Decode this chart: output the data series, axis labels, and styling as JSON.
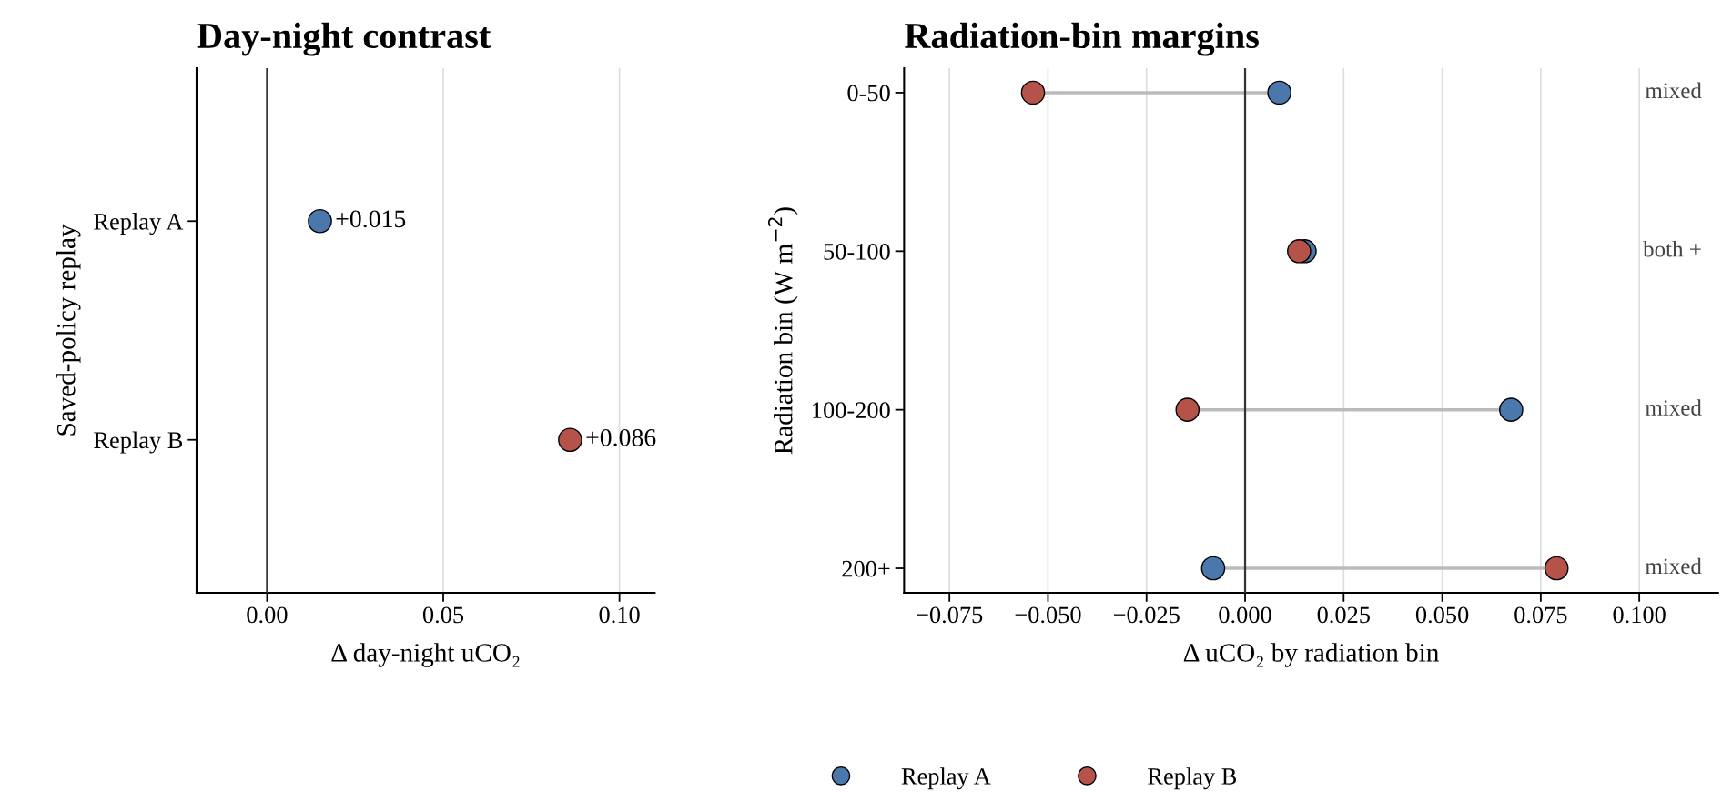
{
  "chart_data": [
    {
      "type": "scatter",
      "orientation": "horizontal",
      "title": "Day-night contrast",
      "xlabel": "Δ day-night uCO₂",
      "ylabel": "Saved-policy replay",
      "categories": [
        "Replay A",
        "Replay B"
      ],
      "series": [
        {
          "values": [
            0.015,
            0.086
          ],
          "colors": [
            "#4a78ad",
            "#b5524a"
          ],
          "value_labels": [
            "+0.015",
            "+0.086"
          ]
        }
      ],
      "xlim": [
        -0.02,
        0.11
      ],
      "xticks": [
        {
          "value": 0,
          "label": "0.00"
        },
        0.05,
        {
          "value": 0.1,
          "label": "0.10"
        }
      ],
      "ref_lines": [
        {
          "axis": "x",
          "value": 0,
          "color": "#333333"
        }
      ],
      "grid": "x",
      "marker": "circle",
      "legend": false
    },
    {
      "type": "scatter",
      "orientation": "horizontal",
      "title": "Radiation-bin margins",
      "xlabel": "Δ uCO₂ by radiation bin",
      "ylabel": "Radiation bin (W m$^{−2}$)",
      "categories": [
        "0-50",
        "50-100",
        "100-200",
        "200+"
      ],
      "series": [
        {
          "name": "Replay A",
          "color": "#4a78ad",
          "values": [
            0.0087,
            0.0151,
            0.0675,
            -0.0081
          ]
        },
        {
          "name": "Replay B",
          "color": "#b5524a",
          "values": [
            -0.0538,
            0.0137,
            -0.0146,
            0.079
          ]
        }
      ],
      "xlim": [
        -0.0865,
        0.12
      ],
      "xticks": [
        {
          "value": -0.075,
          "label": "−0.075"
        },
        {
          "value": -0.05,
          "label": "−0.050"
        },
        {
          "value": -0.025,
          "label": "−0.025"
        },
        {
          "value": 0,
          "label": "0.000"
        },
        {
          "value": 0.025,
          "label": "0.025"
        },
        {
          "value": 0.05,
          "label": "0.050"
        },
        {
          "value": 0.075,
          "label": "0.075"
        },
        {
          "value": 0.1,
          "label": "0.100"
        }
      ],
      "ref_lines": [
        {
          "axis": "x",
          "value": 0,
          "color": "#333333"
        }
      ],
      "grid": "x",
      "marker": "circle",
      "legend": "bottom",
      "annotations": [
        "mixed",
        "both +",
        "mixed",
        "mixed"
      ]
    }
  ]
}
